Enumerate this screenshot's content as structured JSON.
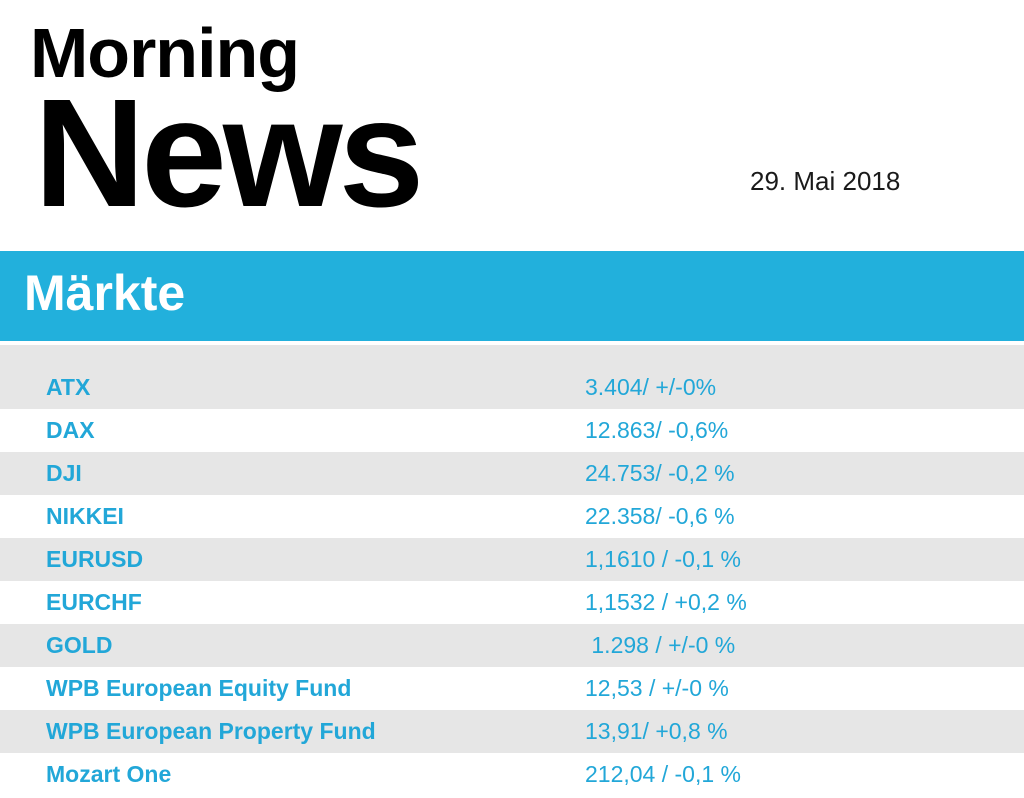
{
  "masthead": {
    "line1": "Morning",
    "line2": "News",
    "date": "29. Mai 2018"
  },
  "section": {
    "title": "Märkte"
  },
  "markets": [
    {
      "name": "ATX",
      "value": "3.404/ +/-0%"
    },
    {
      "name": "DAX",
      "value": "12.863/ -0,6%"
    },
    {
      "name": "DJI",
      "value": "24.753/ -0,2 %"
    },
    {
      "name": "NIKKEI",
      "value": "22.358/ -0,6 %"
    },
    {
      "name": "EURUSD",
      "value": "1,1610 / -0,1 %"
    },
    {
      "name": "EURCHF",
      "value": "1,1532 / +0,2 %"
    },
    {
      "name": "GOLD",
      "value": " 1.298 / +/-0 %"
    },
    {
      "name": "WPB European Equity Fund",
      "value": "12,53 / +/-0 %"
    },
    {
      "name": "WPB European Property Fund",
      "value": "13,91/ +0,8 %"
    },
    {
      "name": "Mozart One",
      "value": "212,04 / -0,1 %"
    }
  ],
  "colors": {
    "accent": "#22b0dc",
    "row_alt": "#e6e6e6",
    "text_accent": "#22a7d8"
  }
}
